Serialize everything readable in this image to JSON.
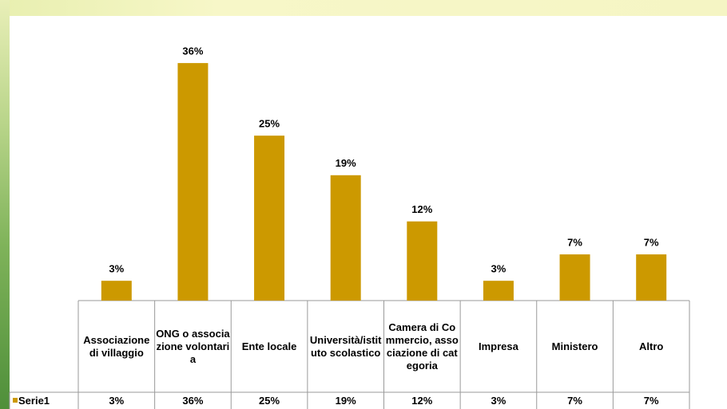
{
  "chart_data": {
    "type": "bar",
    "categories": [
      "Associazione di villaggio",
      "ONG o associazione volontaria",
      "Ente locale",
      "Università/istituto scolastico",
      "Camera di Commercio, associazione di categoria",
      "Impresa",
      "Ministero",
      "Altro"
    ],
    "series": [
      {
        "name": "Serie1",
        "color": "#cc9900",
        "values": [
          3,
          36,
          25,
          19,
          12,
          3,
          7,
          7
        ],
        "value_labels": [
          "3%",
          "36%",
          "25%",
          "19%",
          "12%",
          "3%",
          "7%",
          "7%"
        ]
      }
    ],
    "ylim": [
      0,
      40
    ]
  }
}
